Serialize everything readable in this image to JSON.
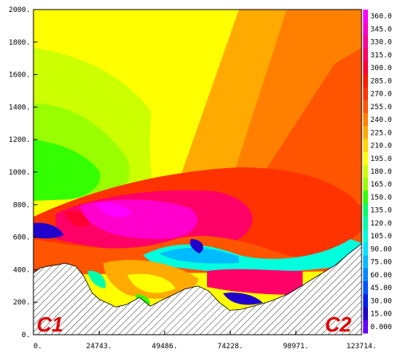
{
  "chart_data": {
    "type": "heatmap",
    "x_ticks": [
      "0.",
      "24743.",
      "49486.",
      "74228.",
      "98971.",
      "123714."
    ],
    "y_ticks": [
      "0.",
      "200.",
      "400.",
      "600.",
      "800.",
      "1000.",
      "1200.",
      "1400.",
      "1600.",
      "1800.",
      "2000."
    ],
    "xlim": [
      0,
      123714
    ],
    "ylim": [
      0,
      2000
    ],
    "colorbar": {
      "labels": [
        "360.0",
        "345.0",
        "330.0",
        "315.0",
        "300.0",
        "285.0",
        "270.0",
        "255.0",
        "240.0",
        "225.0",
        "210.0",
        "195.0",
        "180.0",
        "165.0",
        "150.0",
        "135.0",
        "120.0",
        "105.0",
        "90.00",
        "75.00",
        "60.00",
        "45.00",
        "30.00",
        "15.00",
        "0.000"
      ],
      "colors": [
        "#ff00ff",
        "#ff00cc",
        "#ff0099",
        "#ff0066",
        "#ff0033",
        "#ff1a00",
        "#ff3300",
        "#ff5500",
        "#ff8000",
        "#ffaa00",
        "#ffd400",
        "#ffff00",
        "#ccff00",
        "#99ff00",
        "#33ff00",
        "#00ff66",
        "#00ffaa",
        "#00ffdd",
        "#00e5ff",
        "#00bbff",
        "#0088ff",
        "#0055ff",
        "#0022ee",
        "#2200cc",
        "#6600ff"
      ]
    },
    "end_labels": [
      "C1",
      "C2"
    ],
    "terrain_profile": {
      "x": [
        0,
        2500,
        5000,
        9000,
        12000,
        16000,
        19000,
        22000,
        25000,
        28000,
        31000,
        35000,
        40000,
        44000,
        48000,
        52000,
        57000,
        62000,
        66000,
        70000,
        74000,
        78000,
        84000,
        90000,
        96000,
        102000,
        108000,
        114000,
        119000,
        123714
      ],
      "y": [
        380,
        410,
        420,
        430,
        440,
        420,
        360,
        260,
        215,
        195,
        170,
        185,
        230,
        175,
        210,
        240,
        280,
        300,
        270,
        200,
        150,
        155,
        180,
        210,
        250,
        310,
        370,
        430,
        500,
        560
      ]
    }
  }
}
